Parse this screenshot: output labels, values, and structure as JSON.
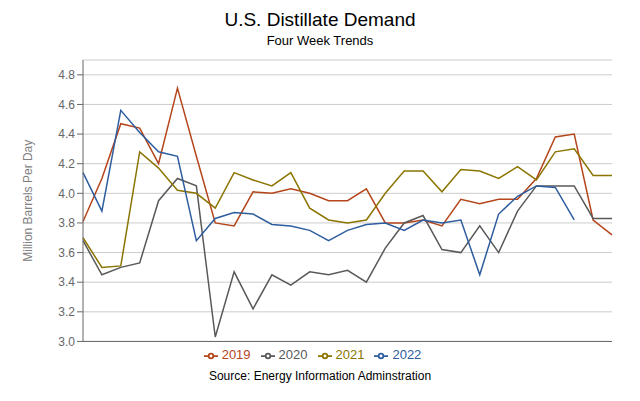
{
  "chart_data": {
    "type": "line",
    "title": "U.S.  Distillate Demand",
    "subtitle": "Four Week Trends",
    "y_label": "Million Barrels Per Day",
    "annotations": [
      "Source: Energy Information Adminstration"
    ],
    "categories": [
      null,
      null,
      null,
      null,
      null,
      null,
      null,
      null,
      null,
      null,
      null,
      null,
      null,
      null,
      null,
      null,
      null,
      null,
      null,
      null,
      null,
      null,
      null,
      null,
      null,
      null,
      null,
      null,
      null
    ],
    "series": [
      {
        "name": "2019",
        "color": "#B5451B",
        "values": [
          3.81,
          4.1,
          4.47,
          4.44,
          4.2,
          4.71,
          4.25,
          3.8,
          3.78,
          4.01,
          4.0,
          4.03,
          4.0,
          3.95,
          3.95,
          4.03,
          3.8,
          3.8,
          3.82,
          3.78,
          3.96,
          3.93,
          3.96,
          3.96,
          4.1,
          4.38,
          4.4,
          3.82,
          3.72
        ]
      },
      {
        "name": "2020",
        "color": "#595959",
        "values": [
          3.68,
          3.45,
          3.5,
          3.53,
          3.95,
          4.1,
          4.05,
          3.03,
          3.47,
          3.22,
          3.45,
          3.38,
          3.47,
          3.45,
          3.48,
          3.4,
          3.63,
          3.8,
          3.85,
          3.62,
          3.6,
          3.78,
          3.6,
          3.88,
          4.05,
          4.05,
          4.05,
          3.83,
          3.83
        ]
      },
      {
        "name": "2021",
        "color": "#8B7500",
        "values": [
          3.7,
          3.5,
          3.51,
          4.28,
          4.17,
          4.02,
          4.0,
          3.9,
          4.14,
          4.09,
          4.05,
          4.14,
          3.9,
          3.82,
          3.8,
          3.82,
          4.0,
          4.15,
          4.15,
          4.01,
          4.16,
          4.15,
          4.1,
          4.18,
          4.09,
          4.28,
          4.3,
          4.12,
          4.12
        ]
      },
      {
        "name": "2022",
        "color": "#2E5D9F",
        "values": [
          4.14,
          3.88,
          4.56,
          4.41,
          4.28,
          4.25,
          3.68,
          3.83,
          3.87,
          3.86,
          3.79,
          3.78,
          3.75,
          3.68,
          3.75,
          3.79,
          3.8,
          3.75,
          3.82,
          3.8,
          3.82,
          3.45,
          3.86,
          3.98,
          4.05,
          4.04,
          3.82,
          null,
          null
        ]
      }
    ],
    "ylim": [
      3.0,
      4.9
    ],
    "yticks": [
      {
        "value": 3.0,
        "label": "3.0"
      },
      3.2,
      3.4,
      3.6,
      3.8,
      {
        "value": 4.0,
        "label": "4.0"
      },
      4.2,
      4.4,
      4.6,
      4.8
    ],
    "grid": true,
    "legend": "bottom",
    "tick_labels": "y"
  }
}
